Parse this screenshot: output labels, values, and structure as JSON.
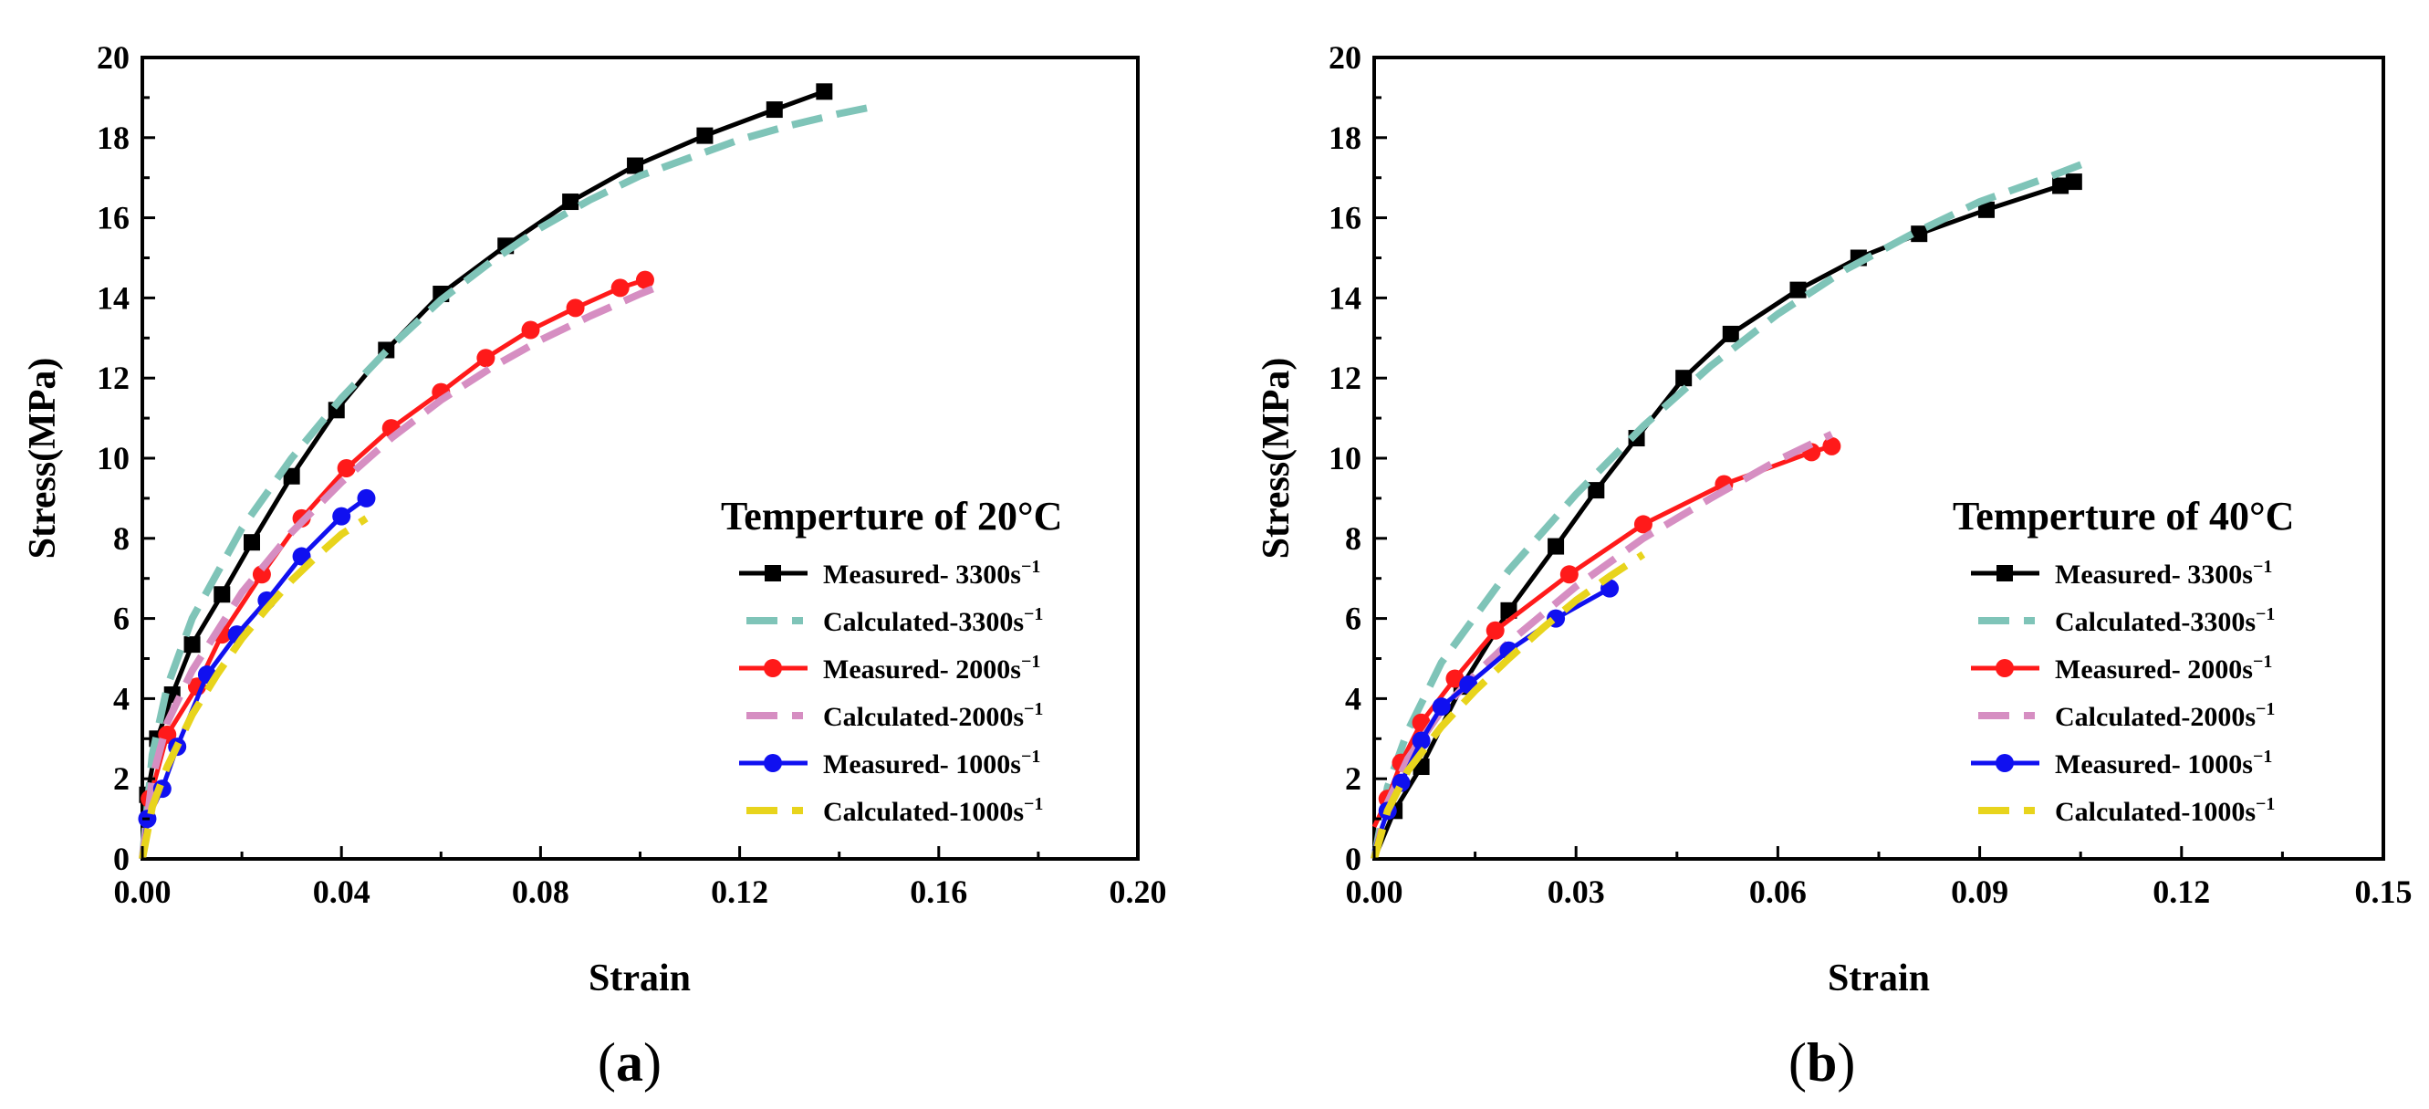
{
  "figure": {
    "panels": [
      {
        "label_open": "(",
        "label_letter": "a",
        "label_close": ")"
      },
      {
        "label_open": "(",
        "label_letter": "b",
        "label_close": ")"
      }
    ]
  },
  "chart_data": [
    {
      "type": "line",
      "panel": "a",
      "title": "",
      "xlabel": "Strain",
      "ylabel": "Stress(MPa)",
      "xlim": [
        0,
        0.2
      ],
      "ylim": [
        0,
        20
      ],
      "xticks": [
        0.0,
        0.04,
        0.08,
        0.12,
        0.16,
        0.2
      ],
      "xtick_labels": [
        "0.00",
        "0.04",
        "0.08",
        "0.12",
        "0.16",
        "0.20"
      ],
      "yticks": [
        0,
        2,
        4,
        6,
        8,
        10,
        12,
        14,
        16,
        18,
        20
      ],
      "ytick_labels": [
        "0",
        "2",
        "4",
        "6",
        "8",
        "10",
        "12",
        "14",
        "16",
        "18",
        "20"
      ],
      "legend_title": "Temperture of 20°C",
      "legend_position": "bottom-right",
      "grid": false,
      "series": [
        {
          "name": "Measured- 3300s",
          "sup": "−1",
          "color": "#000000",
          "style": "solid",
          "marker": "square",
          "x": [
            0,
            0.001,
            0.003,
            0.006,
            0.01,
            0.016,
            0.022,
            0.03,
            0.039,
            0.049,
            0.06,
            0.073,
            0.086,
            0.099,
            0.113,
            0.127,
            0.137
          ],
          "y": [
            0,
            1.6,
            3.0,
            4.1,
            5.35,
            6.6,
            7.9,
            9.55,
            11.2,
            12.7,
            14.1,
            15.3,
            16.4,
            17.3,
            18.05,
            18.7,
            19.15
          ]
        },
        {
          "name": "Calculated-3300s",
          "sup": "−1",
          "color": "#7fc4b8",
          "style": "dashed",
          "marker": "none",
          "x": [
            0,
            0.002,
            0.005,
            0.01,
            0.02,
            0.03,
            0.04,
            0.05,
            0.06,
            0.07,
            0.08,
            0.09,
            0.1,
            0.11,
            0.12,
            0.13,
            0.14,
            0.148
          ],
          "y": [
            0,
            2.6,
            4.3,
            6.0,
            8.25,
            10.0,
            11.5,
            12.8,
            13.95,
            14.9,
            15.75,
            16.45,
            17.05,
            17.5,
            17.95,
            18.3,
            18.6,
            18.8
          ]
        },
        {
          "name": "Measured- 2000s",
          "sup": "−1",
          "color": "#ff1a1a",
          "style": "solid",
          "marker": "circle",
          "x": [
            0,
            0.0015,
            0.005,
            0.011,
            0.016,
            0.024,
            0.032,
            0.041,
            0.05,
            0.06,
            0.069,
            0.078,
            0.087,
            0.096,
            0.101
          ],
          "y": [
            0,
            1.5,
            3.1,
            4.3,
            5.6,
            7.1,
            8.5,
            9.75,
            10.75,
            11.65,
            12.5,
            13.2,
            13.75,
            14.25,
            14.45
          ]
        },
        {
          "name": "Calculated-2000s",
          "sup": "−1",
          "color": "#d68ec2",
          "style": "dashed",
          "marker": "none",
          "x": [
            0,
            0.002,
            0.005,
            0.01,
            0.02,
            0.03,
            0.04,
            0.05,
            0.06,
            0.07,
            0.08,
            0.09,
            0.1,
            0.105
          ],
          "y": [
            0,
            2.0,
            3.4,
            4.7,
            6.65,
            8.15,
            9.4,
            10.5,
            11.45,
            12.25,
            12.95,
            13.55,
            14.1,
            14.35
          ]
        },
        {
          "name": "Measured- 1000s",
          "sup": "−1",
          "color": "#1010f0",
          "style": "solid",
          "marker": "circle",
          "x": [
            0,
            0.001,
            0.004,
            0.007,
            0.013,
            0.019,
            0.025,
            0.032,
            0.04,
            0.045
          ],
          "y": [
            0,
            1.0,
            1.75,
            2.8,
            4.6,
            5.6,
            6.45,
            7.55,
            8.55,
            9.0
          ]
        },
        {
          "name": "Calculated-1000s",
          "sup": "−1",
          "color": "#e8d41c",
          "style": "dashed",
          "marker": "none",
          "x": [
            0,
            0.002,
            0.005,
            0.01,
            0.015,
            0.02,
            0.025,
            0.03,
            0.035,
            0.04,
            0.045
          ],
          "y": [
            0,
            1.3,
            2.3,
            3.6,
            4.6,
            5.5,
            6.25,
            6.95,
            7.55,
            8.1,
            8.5
          ]
        }
      ]
    },
    {
      "type": "line",
      "panel": "b",
      "title": "",
      "xlabel": "Strain",
      "ylabel": "Stress(MPa)",
      "xlim": [
        0,
        0.15
      ],
      "ylim": [
        0,
        20
      ],
      "xticks": [
        0.0,
        0.03,
        0.06,
        0.09,
        0.12,
        0.15
      ],
      "xtick_labels": [
        "0.00",
        "0.03",
        "0.06",
        "0.09",
        "0.12",
        "0.15"
      ],
      "yticks": [
        0,
        2,
        4,
        6,
        8,
        10,
        12,
        14,
        16,
        18,
        20
      ],
      "ytick_labels": [
        "0",
        "2",
        "4",
        "6",
        "8",
        "10",
        "12",
        "14",
        "16",
        "18",
        "20"
      ],
      "legend_title": "Temperture of 40°C",
      "legend_position": "bottom-right",
      "grid": false,
      "series": [
        {
          "name": "Measured- 3300s",
          "sup": "−1",
          "color": "#000000",
          "style": "solid",
          "marker": "square",
          "x": [
            0,
            0.003,
            0.007,
            0.013,
            0.02,
            0.027,
            0.033,
            0.039,
            0.046,
            0.053,
            0.063,
            0.072,
            0.081,
            0.091,
            0.102,
            0.104
          ],
          "y": [
            0,
            1.2,
            2.3,
            4.3,
            6.2,
            7.8,
            9.2,
            10.5,
            12.0,
            13.1,
            14.2,
            15.0,
            15.6,
            16.2,
            16.8,
            16.9
          ]
        },
        {
          "name": "Calculated-3300s",
          "sup": "−1",
          "color": "#7fc4b8",
          "style": "dashed",
          "marker": "none",
          "x": [
            0,
            0.002,
            0.005,
            0.01,
            0.02,
            0.03,
            0.04,
            0.05,
            0.06,
            0.07,
            0.08,
            0.09,
            0.1,
            0.107
          ],
          "y": [
            0,
            1.8,
            3.2,
            4.9,
            7.2,
            9.1,
            10.8,
            12.3,
            13.6,
            14.7,
            15.6,
            16.4,
            17.0,
            17.45
          ]
        },
        {
          "name": "Measured- 2000s",
          "sup": "−1",
          "color": "#ff1a1a",
          "style": "solid",
          "marker": "circle",
          "x": [
            0,
            0.002,
            0.004,
            0.007,
            0.012,
            0.018,
            0.029,
            0.04,
            0.052,
            0.065,
            0.068
          ],
          "y": [
            0.8,
            1.5,
            2.4,
            3.4,
            4.5,
            5.7,
            7.1,
            8.35,
            9.35,
            10.15,
            10.3
          ]
        },
        {
          "name": "Calculated-2000s",
          "sup": "−1",
          "color": "#d68ec2",
          "style": "dashed",
          "marker": "none",
          "x": [
            0,
            0.002,
            0.005,
            0.01,
            0.015,
            0.02,
            0.03,
            0.04,
            0.05,
            0.06,
            0.068
          ],
          "y": [
            0,
            1.4,
            2.5,
            3.7,
            4.6,
            5.4,
            6.8,
            8.0,
            9.0,
            9.95,
            10.6
          ]
        },
        {
          "name": "Measured- 1000s",
          "sup": "−1",
          "color": "#1010f0",
          "style": "solid",
          "marker": "circle",
          "x": [
            0,
            0.002,
            0.004,
            0.007,
            0.01,
            0.014,
            0.02,
            0.027,
            0.035
          ],
          "y": [
            0.2,
            1.2,
            1.9,
            2.95,
            3.8,
            4.35,
            5.2,
            6.0,
            6.75
          ]
        },
        {
          "name": "Calculated-1000s",
          "sup": "−1",
          "color": "#e8d41c",
          "style": "dashed",
          "marker": "none",
          "x": [
            0,
            0.002,
            0.005,
            0.01,
            0.015,
            0.02,
            0.025,
            0.03,
            0.035,
            0.04
          ],
          "y": [
            0,
            1.2,
            2.2,
            3.3,
            4.2,
            5.0,
            5.75,
            6.45,
            7.05,
            7.6
          ]
        }
      ]
    }
  ]
}
